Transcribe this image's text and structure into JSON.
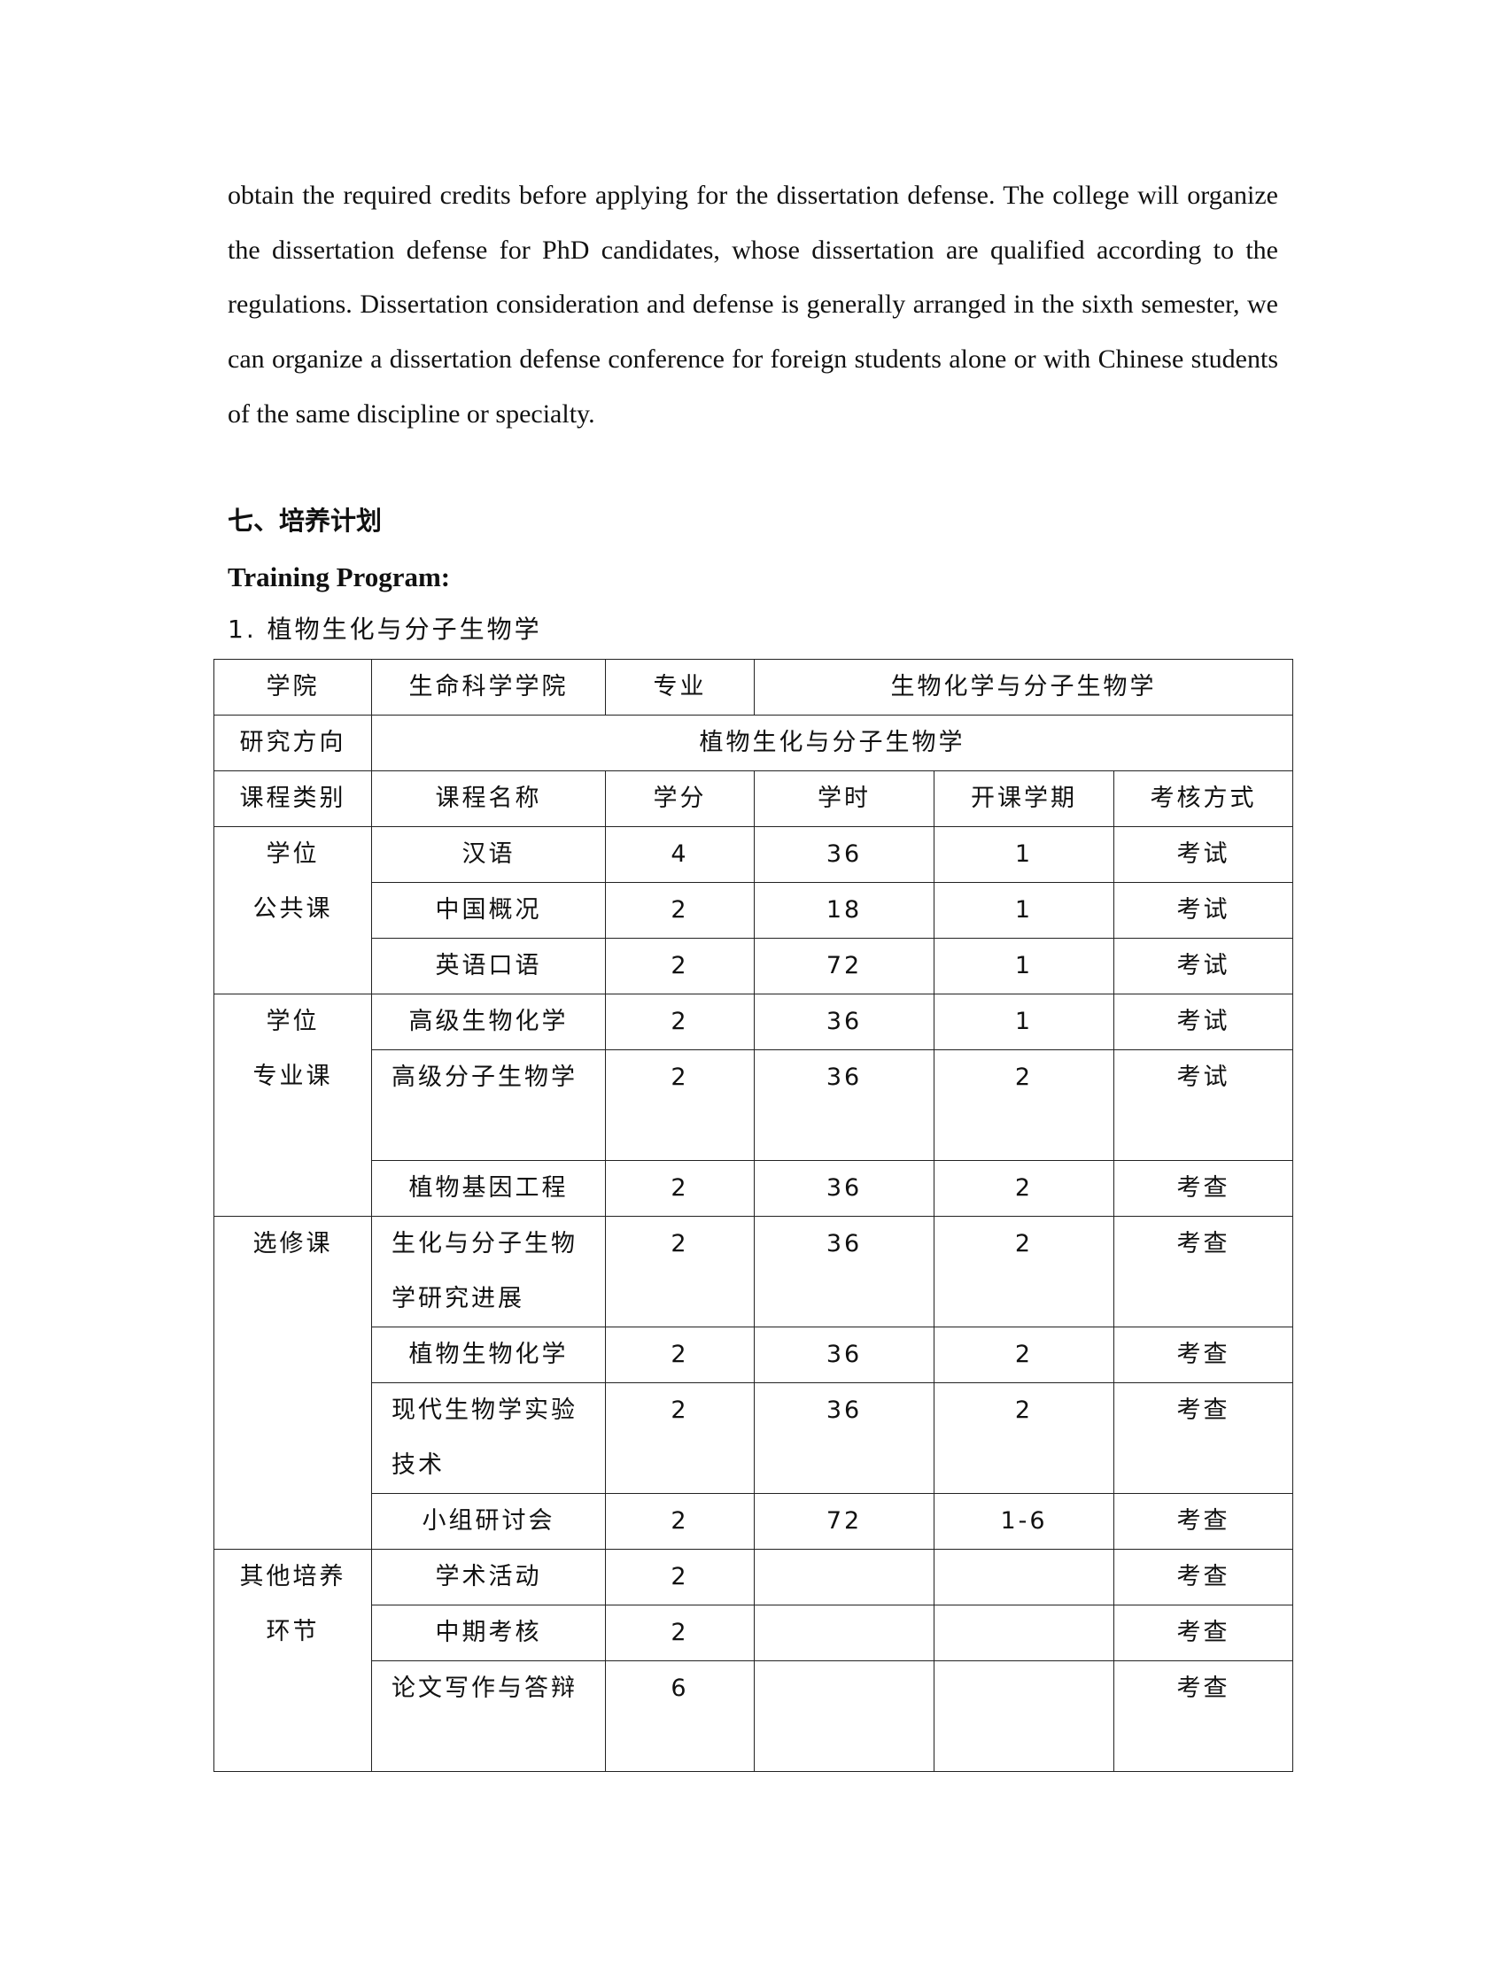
{
  "paragraph": "obtain the required credits before applying for the dissertation defense. The college will organize the dissertation defense for PhD candidates, whose dissertation are qualified according to the regulations. Dissertation consideration and defense is generally arranged in the sixth semester, we can organize a dissertation defense conference for foreign students alone or with Chinese students of the same discipline or specialty.",
  "section_heading": "七、培养计划",
  "section_heading_en": "Training Program:",
  "subheading": "1.  植物生化与分子生物学",
  "table": {
    "college_label": "学院",
    "college": "生命科学学院",
    "major_label": "专业",
    "major": "生物化学与分子生物学",
    "direction_label": "研究方向",
    "direction": "植物生化与分子生物学",
    "headers": [
      "课程类别",
      "课程名称",
      "学分",
      "学时",
      "开课学期",
      "考核方式"
    ],
    "categories": [
      "学位\n公共课",
      "学位\n专业课",
      "选修课",
      "其他培养\n环节"
    ],
    "rows": [
      {
        "name": "汉语",
        "credits": "4",
        "hours": "36",
        "semester": "1",
        "assessment": "考试"
      },
      {
        "name": "中国概况",
        "credits": "2",
        "hours": "18",
        "semester": "1",
        "assessment": "考试"
      },
      {
        "name": "英语口语",
        "credits": "2",
        "hours": "72",
        "semester": "1",
        "assessment": "考试"
      },
      {
        "name": "高级生物化学",
        "credits": "2",
        "hours": "36",
        "semester": "1",
        "assessment": "考试"
      },
      {
        "name": "高级分子生物学",
        "credits": "2",
        "hours": "36",
        "semester": "2",
        "assessment": "考试"
      },
      {
        "name": "植物基因工程",
        "credits": "2",
        "hours": "36",
        "semester": "2",
        "assessment": "考查"
      },
      {
        "name": "生化与分子生物学研究进展",
        "credits": "2",
        "hours": "36",
        "semester": "2",
        "assessment": "考查"
      },
      {
        "name": "植物生物化学",
        "credits": "2",
        "hours": "36",
        "semester": "2",
        "assessment": "考查"
      },
      {
        "name": "现代生物学实验技术",
        "credits": "2",
        "hours": "36",
        "semester": "2",
        "assessment": "考查"
      },
      {
        "name": "小组研讨会",
        "credits": "2",
        "hours": "72",
        "semester": "1-6",
        "assessment": "考查"
      },
      {
        "name": "学术活动",
        "credits": "2",
        "hours": "",
        "semester": "",
        "assessment": "考查"
      },
      {
        "name": "中期考核",
        "credits": "2",
        "hours": "",
        "semester": "",
        "assessment": "考查"
      },
      {
        "name": "论文写作与答辩",
        "credits": "6",
        "hours": "",
        "semester": "",
        "assessment": "考查"
      }
    ]
  }
}
